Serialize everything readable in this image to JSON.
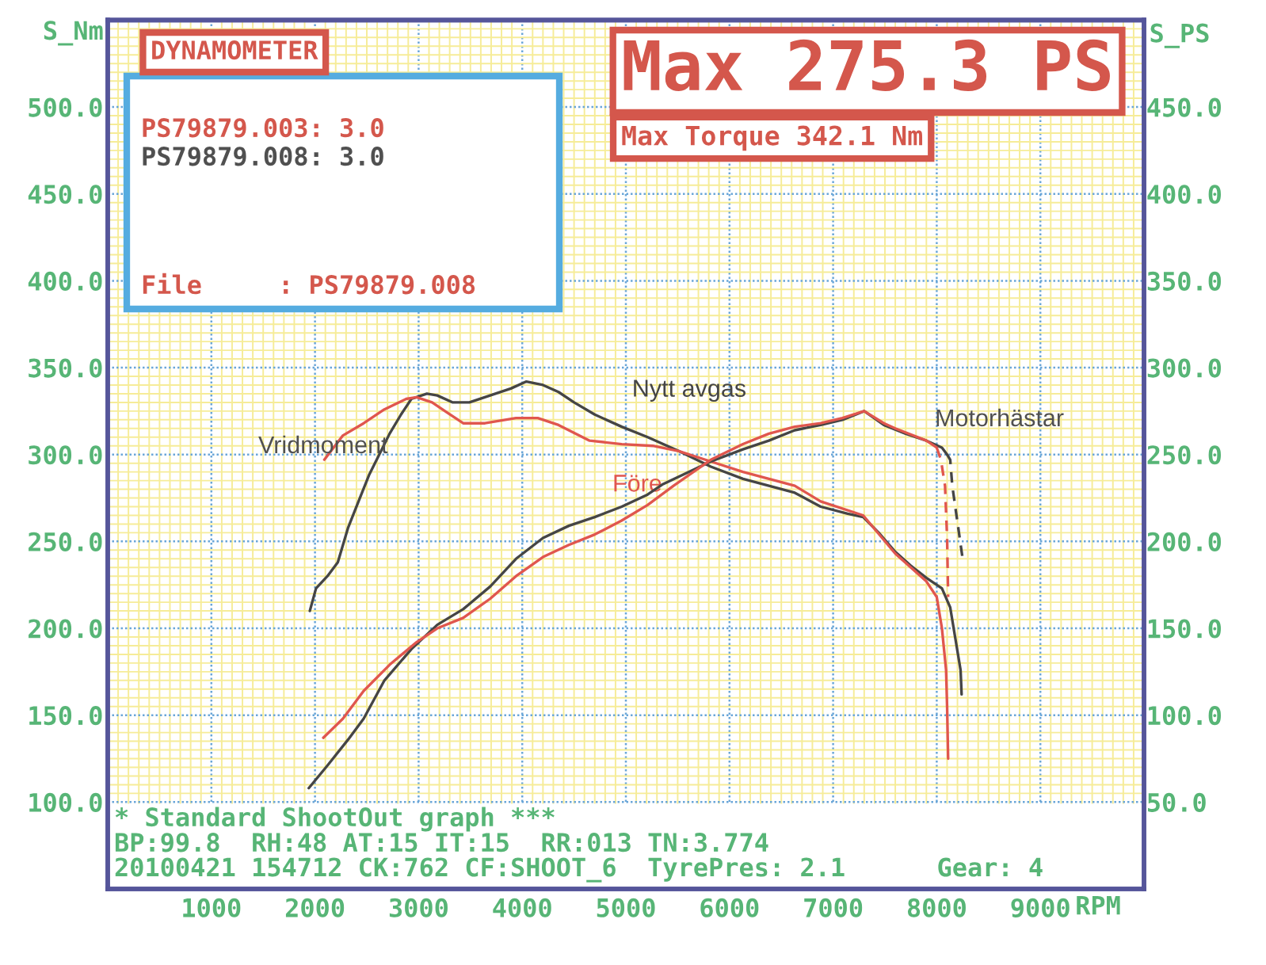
{
  "chart_data": {
    "type": "line",
    "title": "Max 275.3 PS",
    "subtitle": "Max Torque 342.1 Nm",
    "xlabel": "RPM",
    "ylabel": "S_Nm",
    "y2label": "S_PS",
    "annotations": [
      "DYNAMOMETER",
      "PS79879.003: 3.0",
      "PS79879.008: 3.0",
      "File     : PS79879.008",
      "* Standard ShootOut graph ***",
      "BP:99.8  RH:48 AT:15 IT:15  RR:013 TN:3.774",
      "20100421 154712 CK:762 CF:SHOOT_6  TyrePres: 2.1      Gear: 4",
      "Vridmoment",
      "Motorhästar"
    ],
    "xlim": [
      0,
      10000
    ],
    "ylim": [
      50,
      550
    ],
    "y2lim": [
      0,
      500
    ],
    "xticks": [
      {
        "value": 100,
        "label": null
      },
      {
        "value": 200,
        "label": null
      },
      {
        "value": 300,
        "label": null
      },
      {
        "value": 400,
        "label": null
      },
      {
        "value": 500,
        "label": null
      },
      {
        "value": 600,
        "label": null
      },
      {
        "value": 700,
        "label": null
      },
      {
        "value": 800,
        "label": null
      },
      {
        "value": 900,
        "label": null
      },
      1000,
      {
        "value": 1100,
        "label": null
      },
      {
        "value": 1200,
        "label": null
      },
      {
        "value": 1300,
        "label": null
      },
      {
        "value": 1400,
        "label": null
      },
      {
        "value": 1500,
        "label": null
      },
      {
        "value": 1600,
        "label": null
      },
      {
        "value": 1700,
        "label": null
      },
      {
        "value": 1800,
        "label": null
      },
      {
        "value": 1900,
        "label": null
      },
      2000,
      {
        "value": 2100,
        "label": null
      },
      {
        "value": 2200,
        "label": null
      },
      {
        "value": 2300,
        "label": null
      },
      {
        "value": 2400,
        "label": null
      },
      {
        "value": 2500,
        "label": null
      },
      {
        "value": 2600,
        "label": null
      },
      {
        "value": 2700,
        "label": null
      },
      {
        "value": 2800,
        "label": null
      },
      {
        "value": 2900,
        "label": null
      },
      3000,
      {
        "value": 3100,
        "label": null
      },
      {
        "value": 3200,
        "label": null
      },
      {
        "value": 3300,
        "label": null
      },
      {
        "value": 3400,
        "label": null
      },
      {
        "value": 3500,
        "label": null
      },
      {
        "value": 3600,
        "label": null
      },
      {
        "value": 3700,
        "label": null
      },
      {
        "value": 3800,
        "label": null
      },
      {
        "value": 3900,
        "label": null
      },
      4000,
      {
        "value": 4100,
        "label": null
      },
      {
        "value": 4200,
        "label": null
      },
      {
        "value": 4300,
        "label": null
      },
      {
        "value": 4400,
        "label": null
      },
      {
        "value": 4500,
        "label": null
      },
      {
        "value": 4600,
        "label": null
      },
      {
        "value": 4700,
        "label": null
      },
      {
        "value": 4800,
        "label": null
      },
      {
        "value": 4900,
        "label": null
      },
      5000,
      {
        "value": 5100,
        "label": null
      },
      {
        "value": 5200,
        "label": null
      },
      {
        "value": 5300,
        "label": null
      },
      {
        "value": 5400,
        "label": null
      },
      {
        "value": 5500,
        "label": null
      },
      {
        "value": 5600,
        "label": null
      },
      {
        "value": 5700,
        "label": null
      },
      {
        "value": 5800,
        "label": null
      },
      {
        "value": 5900,
        "label": null
      },
      6000,
      {
        "value": 6100,
        "label": null
      },
      {
        "value": 6200,
        "label": null
      },
      {
        "value": 6300,
        "label": null
      },
      {
        "value": 6400,
        "label": null
      },
      {
        "value": 6500,
        "label": null
      },
      {
        "value": 6600,
        "label": null
      },
      {
        "value": 6700,
        "label": null
      },
      {
        "value": 6800,
        "label": null
      },
      {
        "value": 6900,
        "label": null
      },
      7000,
      {
        "value": 7100,
        "label": null
      },
      {
        "value": 7200,
        "label": null
      },
      {
        "value": 7300,
        "label": null
      },
      {
        "value": 7400,
        "label": null
      },
      {
        "value": 7500,
        "label": null
      },
      {
        "value": 7600,
        "label": null
      },
      {
        "value": 7700,
        "label": null
      },
      {
        "value": 7800,
        "label": null
      },
      {
        "value": 7900,
        "label": null
      },
      8000,
      {
        "value": 8100,
        "label": null
      },
      {
        "value": 8200,
        "label": null
      },
      {
        "value": 8300,
        "label": null
      },
      {
        "value": 8400,
        "label": null
      },
      {
        "value": 8500,
        "label": null
      },
      {
        "value": 8600,
        "label": null
      },
      {
        "value": 8700,
        "label": null
      },
      {
        "value": 8800,
        "label": null
      },
      {
        "value": 8900,
        "label": null
      },
      9000,
      {
        "value": 9100,
        "label": null
      },
      {
        "value": 9200,
        "label": null
      },
      {
        "value": 9300,
        "label": null
      },
      {
        "value": 9400,
        "label": null
      },
      {
        "value": 9500,
        "label": null
      },
      {
        "value": 9600,
        "label": null
      },
      {
        "value": 9700,
        "label": null
      },
      {
        "value": 9800,
        "label": null
      },
      {
        "value": 9900,
        "label": null
      }
    ],
    "yticks": [
      {
        "value": 100,
        "label": "100.0"
      },
      {
        "value": 105,
        "label": null
      },
      {
        "value": 110,
        "label": null
      },
      {
        "value": 115,
        "label": null
      },
      {
        "value": 120,
        "label": null
      },
      {
        "value": 125,
        "label": null
      },
      {
        "value": 130,
        "label": null
      },
      {
        "value": 135,
        "label": null
      },
      {
        "value": 140,
        "label": null
      },
      {
        "value": 145,
        "label": null
      },
      {
        "value": 150,
        "label": "150.0"
      },
      {
        "value": 155,
        "label": null
      },
      {
        "value": 160,
        "label": null
      },
      {
        "value": 165,
        "label": null
      },
      {
        "value": 170,
        "label": null
      },
      {
        "value": 175,
        "label": null
      },
      {
        "value": 180,
        "label": null
      },
      {
        "value": 185,
        "label": null
      },
      {
        "value": 190,
        "label": null
      },
      {
        "value": 195,
        "label": null
      },
      {
        "value": 200,
        "label": "200.0"
      },
      {
        "value": 205,
        "label": null
      },
      {
        "value": 210,
        "label": null
      },
      {
        "value": 215,
        "label": null
      },
      {
        "value": 220,
        "label": null
      },
      {
        "value": 225,
        "label": null
      },
      {
        "value": 230,
        "label": null
      },
      {
        "value": 235,
        "label": null
      },
      {
        "value": 240,
        "label": null
      },
      {
        "value": 245,
        "label": null
      },
      {
        "value": 250,
        "label": "250.0"
      },
      {
        "value": 255,
        "label": null
      },
      {
        "value": 260,
        "label": null
      },
      {
        "value": 265,
        "label": null
      },
      {
        "value": 270,
        "label": null
      },
      {
        "value": 275,
        "label": null
      },
      {
        "value": 280,
        "label": null
      },
      {
        "value": 285,
        "label": null
      },
      {
        "value": 290,
        "label": null
      },
      {
        "value": 295,
        "label": null
      },
      {
        "value": 300,
        "label": "300.0"
      },
      {
        "value": 305,
        "label": null
      },
      {
        "value": 310,
        "label": null
      },
      {
        "value": 315,
        "label": null
      },
      {
        "value": 320,
        "label": null
      },
      {
        "value": 325,
        "label": null
      },
      {
        "value": 330,
        "label": null
      },
      {
        "value": 335,
        "label": null
      },
      {
        "value": 340,
        "label": null
      },
      {
        "value": 345,
        "label": null
      },
      {
        "value": 350,
        "label": "350.0"
      },
      {
        "value": 355,
        "label": null
      },
      {
        "value": 360,
        "label": null
      },
      {
        "value": 365,
        "label": null
      },
      {
        "value": 370,
        "label": null
      },
      {
        "value": 375,
        "label": null
      },
      {
        "value": 380,
        "label": null
      },
      {
        "value": 385,
        "label": null
      },
      {
        "value": 390,
        "label": null
      },
      {
        "value": 395,
        "label": null
      },
      {
        "value": 400,
        "label": "400.0"
      },
      {
        "value": 405,
        "label": null
      },
      {
        "value": 410,
        "label": null
      },
      {
        "value": 415,
        "label": null
      },
      {
        "value": 420,
        "label": null
      },
      {
        "value": 425,
        "label": null
      },
      {
        "value": 430,
        "label": null
      },
      {
        "value": 435,
        "label": null
      },
      {
        "value": 440,
        "label": null
      },
      {
        "value": 445,
        "label": null
      },
      {
        "value": 450,
        "label": "450.0"
      },
      {
        "value": 455,
        "label": null
      },
      {
        "value": 460,
        "label": null
      },
      {
        "value": 465,
        "label": null
      },
      {
        "value": 470,
        "label": null
      },
      {
        "value": 475,
        "label": null
      },
      {
        "value": 480,
        "label": null
      },
      {
        "value": 485,
        "label": null
      },
      {
        "value": 490,
        "label": null
      },
      {
        "value": 495,
        "label": null
      },
      {
        "value": 500,
        "label": "500.0"
      },
      {
        "value": 505,
        "label": null
      },
      {
        "value": 510,
        "label": null
      },
      {
        "value": 515,
        "label": null
      },
      {
        "value": 520,
        "label": null
      },
      {
        "value": 525,
        "label": null
      },
      {
        "value": 530,
        "label": null
      },
      {
        "value": 535,
        "label": null
      },
      {
        "value": 540,
        "label": null
      },
      {
        "value": 545,
        "label": null
      }
    ],
    "y2ticks": [
      {
        "value": 50,
        "label": "50.0"
      },
      {
        "value": 100,
        "label": "100.0"
      },
      {
        "value": 150,
        "label": "150.0"
      },
      {
        "value": 200,
        "label": "200.0"
      },
      {
        "value": 250,
        "label": "250.0"
      },
      {
        "value": 300,
        "label": "300.0"
      },
      {
        "value": 350,
        "label": "350.0"
      },
      {
        "value": 400,
        "label": "400.0"
      },
      {
        "value": 450,
        "label": "450.0"
      }
    ],
    "grid": true,
    "line_style": "solid",
    "series": [
      {
        "name": "Nytt avgas",
        "color": "#454545",
        "x": [
          1950,
          2010,
          2120,
          2220,
          2320,
          2420,
          2520,
          2620,
          2720,
          2830,
          2930,
          3080,
          3180,
          3330,
          3490,
          3690,
          3890,
          4040,
          4200,
          4350,
          4500,
          4700,
          4960,
          5210,
          5510,
          5820,
          6130,
          6380,
          6630,
          6880,
          7140,
          7290,
          7440,
          7600,
          7750,
          7900,
          8050,
          8130,
          8180,
          8230,
          8240
        ],
        "values": [
          210,
          223,
          230,
          238,
          258,
          273,
          288,
          300,
          312,
          323,
          332,
          335,
          334,
          330,
          330,
          334,
          338,
          342,
          340,
          336,
          330,
          323,
          316,
          310,
          302,
          293,
          286,
          282,
          278,
          270,
          266,
          264,
          255,
          244,
          236,
          229,
          223,
          212,
          194,
          176,
          162
        ]
      },
      {
        "name": "Före",
        "color": "#e0564e",
        "x": [
          2090,
          2270,
          2470,
          2670,
          2880,
          2980,
          3130,
          3280,
          3430,
          3640,
          3940,
          4150,
          4350,
          4650,
          4960,
          5260,
          5510,
          5820,
          6130,
          6380,
          6630,
          6880,
          7290,
          7600,
          7900,
          8000,
          8050,
          8090,
          8100,
          8110
        ],
        "values": [
          297,
          311,
          318,
          326,
          332,
          333,
          330,
          324,
          318,
          318,
          321,
          321,
          317,
          308,
          306,
          305,
          302,
          296,
          290,
          286,
          282,
          273,
          265,
          243,
          227,
          218,
          200,
          176,
          155,
          125
        ]
      },
      {
        "color": "#454545",
        "axis": "y2",
        "x": [
          1940,
          2120,
          2320,
          2470,
          2670,
          2930,
          3180,
          3430,
          3690,
          3940,
          4200,
          4450,
          4700,
          4960,
          5210,
          5360,
          5820,
          6130,
          6380,
          6630,
          6880,
          7090,
          7300,
          7490,
          7700,
          7900,
          8050,
          8100
        ],
        "values": [
          58,
          71,
          86,
          98,
          120,
          138,
          152,
          161,
          174,
          190,
          202,
          209,
          214,
          220,
          227,
          233,
          246,
          253,
          258,
          264,
          267,
          270,
          275,
          267,
          262,
          258,
          254,
          250
        ]
      },
      {
        "color": "#e0564e",
        "axis": "y2",
        "x": [
          2080,
          2270,
          2470,
          2720,
          2980,
          3180,
          3430,
          3690,
          3940,
          4200,
          4450,
          4700,
          4960,
          5210,
          5460,
          5820,
          6130,
          6380,
          6630,
          6880,
          7090,
          7300,
          7490,
          7600,
          7900,
          8000
        ],
        "values": [
          87,
          98,
          114,
          129,
          142,
          150,
          156,
          167,
          180,
          191,
          198,
          204,
          212,
          221,
          232,
          247,
          256,
          262,
          266,
          268,
          271,
          275,
          268,
          265,
          258,
          254
        ]
      },
      {
        "color": "#454545",
        "axis": "y2",
        "line_style": "dashed",
        "x": [
          8100,
          8130,
          8150,
          8200,
          8250
        ],
        "values": [
          250,
          247,
          232,
          211,
          190
        ]
      },
      {
        "color": "#e0564e",
        "axis": "y2",
        "line_style": "dashed",
        "x": [
          8000,
          8040,
          8080,
          8100,
          8110
        ],
        "values": [
          254,
          247,
          232,
          202,
          168
        ]
      }
    ]
  }
}
